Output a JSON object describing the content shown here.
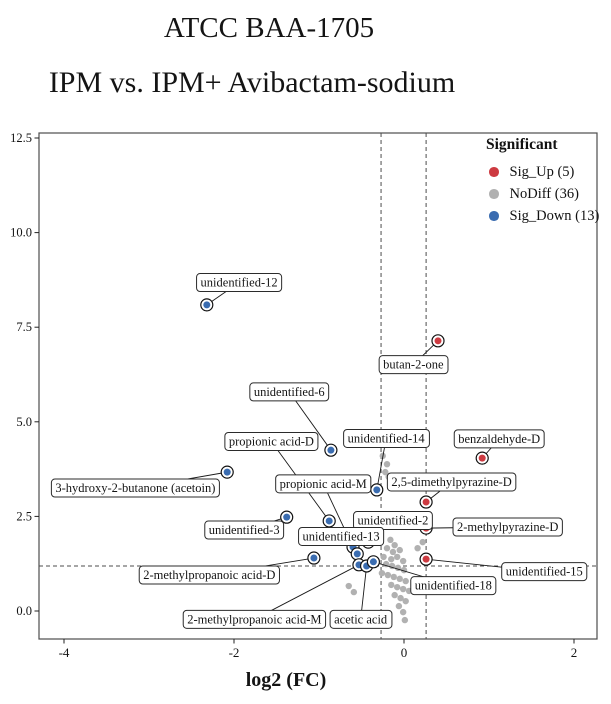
{
  "chart_data": {
    "type": "scatter",
    "subtype": "volcano-plot",
    "title": "ATCC BAA-1705",
    "subtitle": "IPM vs. IPM+ Avibactam-sodium",
    "xlabel": "log2 (FC)",
    "ylabel": "",
    "xlim": [
      -4.3,
      2.27
    ],
    "ylim": [
      -0.74,
      12.63
    ],
    "grid": false,
    "x_ticks": [
      {
        "v": -4,
        "label": "-4"
      },
      {
        "v": -2,
        "label": "-2"
      },
      {
        "v": 0,
        "label": "0"
      },
      {
        "v": 2,
        "label": "2"
      }
    ],
    "y_ticks": [
      {
        "v": 0,
        "label": "0.0"
      },
      {
        "v": 2.5,
        "label": "2.5"
      },
      {
        "v": 5,
        "label": "5.0"
      },
      {
        "v": 7.5,
        "label": "7.5"
      },
      {
        "v": 10,
        "label": "10.0"
      },
      {
        "v": 12.5,
        "label": "12.5"
      }
    ],
    "threshold_lines": {
      "style": "dashed",
      "vertical_x": [
        -0.27,
        0.26
      ],
      "horizontal_y": 1.19
    },
    "legend": {
      "title": "Significant",
      "position": "top-right-inside",
      "entries": [
        {
          "label": "Sig_Up (5)",
          "color": "#cd3a41"
        },
        {
          "label": "NoDiff (36)",
          "color": "#b1b1b1"
        },
        {
          "label": "Sig_Down (13)",
          "color": "#3a6cb0"
        }
      ]
    },
    "series": [
      {
        "name": "Sig_Up",
        "count": 5,
        "color": "#cd3a41",
        "labeled_points": [
          {
            "name": "butan-2-one",
            "x": 0.4,
            "y": 7.14,
            "label_x": 0.11,
            "label_y": 6.51
          },
          {
            "name": "benzaldehyde-D",
            "x": 0.92,
            "y": 4.04,
            "label_x": 1.12,
            "label_y": 4.55
          },
          {
            "name": "2,5-dimethylpyrazine-D",
            "x": 0.26,
            "y": 2.88,
            "label_x": 0.56,
            "label_y": 3.41
          },
          {
            "name": "2-methylpyrazine-D",
            "x": 0.26,
            "y": 2.19,
            "label_x": 1.22,
            "label_y": 2.22
          },
          {
            "name": "unidentified-15",
            "x": 0.26,
            "y": 1.37,
            "label_x": 1.65,
            "label_y": 1.04
          }
        ]
      },
      {
        "name": "Sig_Down",
        "count": 13,
        "color": "#3a6cb0",
        "labeled_points": [
          {
            "name": "unidentified-12",
            "x": -2.32,
            "y": 8.09,
            "label_x": -1.94,
            "label_y": 8.68
          },
          {
            "name": "unidentified-6",
            "x": -0.86,
            "y": 4.25,
            "label_x": -1.35,
            "label_y": 5.79
          },
          {
            "name": "3-hydroxy-2-butanone (acetoin)",
            "x": -2.08,
            "y": 3.67,
            "label_x": -3.16,
            "label_y": 3.25
          },
          {
            "name": "propionic acid-D",
            "x": -0.88,
            "y": 2.38,
            "label_x": -1.56,
            "label_y": 4.48
          },
          {
            "name": "propionic acid-M",
            "x": -0.6,
            "y": 1.69,
            "label_x": -0.95,
            "label_y": 3.36
          },
          {
            "name": "unidentified-14",
            "x": -0.32,
            "y": 3.2,
            "label_x": -0.21,
            "label_y": 4.56
          },
          {
            "name": "unidentified-3",
            "x": -1.38,
            "y": 2.48,
            "label_x": -1.88,
            "label_y": 2.14
          },
          {
            "name": "unidentified-2",
            "x": -0.42,
            "y": 1.82,
            "label_x": -0.13,
            "label_y": 2.39
          },
          {
            "name": "unidentified-13",
            "x": -0.55,
            "y": 1.51,
            "label_x": -0.74,
            "label_y": 1.97
          },
          {
            "name": "2-methylpropanoic acid-D",
            "x": -1.06,
            "y": 1.4,
            "label_x": -2.29,
            "label_y": 0.95
          },
          {
            "name": "2-methylpropanoic acid-M",
            "x": -0.53,
            "y": 1.22,
            "label_x": -1.76,
            "label_y": -0.22
          },
          {
            "name": "acetic acid",
            "x": -0.44,
            "y": 1.19,
            "label_x": -0.51,
            "label_y": -0.22
          },
          {
            "name": "unidentified-18",
            "x": -0.36,
            "y": 1.3,
            "label_x": 0.58,
            "label_y": 0.67
          }
        ]
      },
      {
        "name": "NoDiff",
        "count": 36,
        "color": "#b1b1b1",
        "points": [
          [
            -0.25,
            4.1
          ],
          [
            -0.2,
            3.88
          ],
          [
            -0.22,
            3.67
          ],
          [
            -0.18,
            3.54
          ],
          [
            0.16,
            1.66
          ],
          [
            0.22,
            1.82
          ],
          [
            -0.65,
            0.66
          ],
          [
            -0.59,
            0.5
          ],
          [
            -0.16,
            1.88
          ],
          [
            -0.11,
            1.74
          ],
          [
            -0.2,
            1.66
          ],
          [
            -0.13,
            1.56
          ],
          [
            -0.05,
            1.61
          ],
          [
            -0.24,
            1.43
          ],
          [
            -0.15,
            1.37
          ],
          [
            -0.08,
            1.43
          ],
          [
            -0.01,
            1.32
          ],
          [
            -0.21,
            1.24
          ],
          [
            -0.14,
            1.19
          ],
          [
            -0.07,
            1.14
          ],
          [
            0.0,
            1.08
          ],
          [
            -0.26,
            1.0
          ],
          [
            -0.19,
            0.95
          ],
          [
            -0.12,
            0.9
          ],
          [
            -0.05,
            0.85
          ],
          [
            0.02,
            0.79
          ],
          [
            -0.15,
            0.69
          ],
          [
            -0.08,
            0.63
          ],
          [
            -0.01,
            0.58
          ],
          [
            0.06,
            0.53
          ],
          [
            -0.11,
            0.42
          ],
          [
            -0.04,
            0.34
          ],
          [
            0.02,
            0.26
          ],
          [
            -0.06,
            0.13
          ],
          [
            -0.01,
            -0.03
          ],
          [
            0.01,
            -0.24
          ]
        ]
      }
    ]
  }
}
